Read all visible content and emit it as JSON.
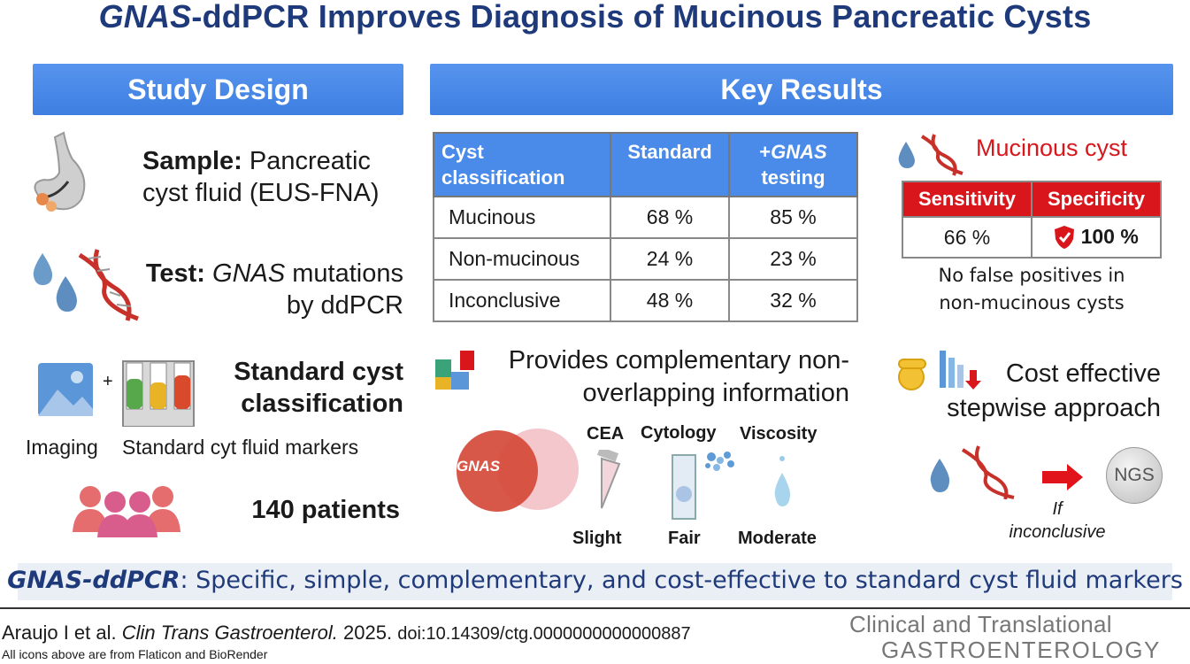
{
  "title": {
    "em": "GNAS",
    "rest": "-ddPCR Improves Diagnosis of Mucinous Pancreatic Cysts"
  },
  "study_design": {
    "header": "Study Design",
    "sample_label": "Sample:",
    "sample_text_1": "Pancreatic",
    "sample_text_2": "cyst fluid (EUS-FNA)",
    "test_label": "Test:",
    "test_em": "GNAS",
    "test_text_1": "mutations",
    "test_text_2": "by ddPCR",
    "standard_1": "Standard cyst",
    "standard_2": "classification",
    "plus": "+",
    "imaging": "Imaging",
    "markers": "Standard cyt fluid markers",
    "patients": "140 patients"
  },
  "key_results": {
    "header": "Key Results",
    "table": {
      "headers": [
        "Cyst classification",
        "Standard"
      ],
      "header3_prefix": "+",
      "header3_em": "GNAS",
      "header3_rest": "testing",
      "rows": [
        [
          "Mucinous",
          "68 %",
          "85 %"
        ],
        [
          "Non-mucinous",
          "24 %",
          "23 %"
        ],
        [
          "Inconclusive",
          "48 %",
          "32 %"
        ]
      ]
    },
    "mucinous": {
      "title": "Mucinous cyst",
      "headers": [
        "Sensitivity",
        "Specificity"
      ],
      "sensitivity": "66 %",
      "specificity": "100 %",
      "note_1": "No false positives in",
      "note_2": "non-mucinous cysts"
    },
    "complementary": {
      "line1": "Provides complementary non-",
      "line2": "overlapping information",
      "venn_label": "GNAS",
      "items": [
        {
          "name": "CEA",
          "level": "Slight"
        },
        {
          "name": "Cytology",
          "level": "Fair"
        },
        {
          "name": "Viscosity",
          "level": "Moderate"
        }
      ]
    },
    "cost": {
      "line1": "Cost effective",
      "line2": "stepwise approach",
      "ngs": "NGS",
      "if_1": "If",
      "if_2": "inconclusive"
    }
  },
  "conclusion": {
    "em": "GNAS-ddPCR",
    "rest": ": Specific, simple, complementary, and cost-effective to standard cyst fluid markers"
  },
  "citation": {
    "authors": "Araujo I et al.",
    "journal": "Clin Trans Gastroenterol.",
    "year": "2025.",
    "doi": "doi:10.14309/ctg.0000000000000887",
    "credit": "All icons above are from Flaticon and BioRender"
  },
  "journal_logo": {
    "line1": "Clinical and Translational",
    "line2": "GASTROENTEROLOGY"
  },
  "colors": {
    "banner_blue": "#4a8ae8",
    "title_navy": "#1f3a7a",
    "accent_red": "#d9161c"
  }
}
